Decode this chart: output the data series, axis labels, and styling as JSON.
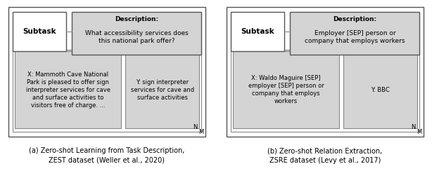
{
  "fig_width": 6.14,
  "fig_height": 2.54,
  "background_color": "#ffffff",
  "panel_a": {
    "caption": "(a) Zero-shot Learning from Task Description,\nZEST dataset (Weller et al., 2020)",
    "subtask_label": "Subtask",
    "desc_title": "Description:",
    "desc_body": "What accessibility services does\nthis national park offer?",
    "x_text_bold": "X:",
    "x_text_normal": " Mammoth Cave National\nPark is pleased to offer sign\ninterpreter services for cave\nand surface activities to\nvisitors free of charge. ...",
    "x_text_full": "X: Mammoth Cave National\nPark is pleased to offer sign\ninterpreter services for cave\nand surface activities to\nvisitors free of charge. ...",
    "y_text": "Y: sign interpreter\nservices for cave and\nsurface activities",
    "n_label": "N",
    "m_label": "M"
  },
  "panel_b": {
    "caption": "(b) Zero-shot Relation Extraction,\nZSRE dataset (Levy et al., 2017)",
    "subtask_label": "Subtask",
    "desc_title": "Description:",
    "desc_body": "Employer [SEP] person or\ncompany that employs workers",
    "x_text_full": "X: Waldo Maguire [SEP]\nemployer [SEP] person or\ncompany that employs\nworkers",
    "y_text": "Y: BBC",
    "n_label": "N",
    "m_label": "M"
  },
  "box_fill_gray": "#d4d4d4",
  "box_fill_white": "#ffffff",
  "box_edge_dark": "#555555",
  "box_edge_light": "#888888",
  "font_size_caption": 7.0,
  "font_size_subtask": 7.5,
  "font_size_desc": 6.5,
  "font_size_content": 6.0
}
